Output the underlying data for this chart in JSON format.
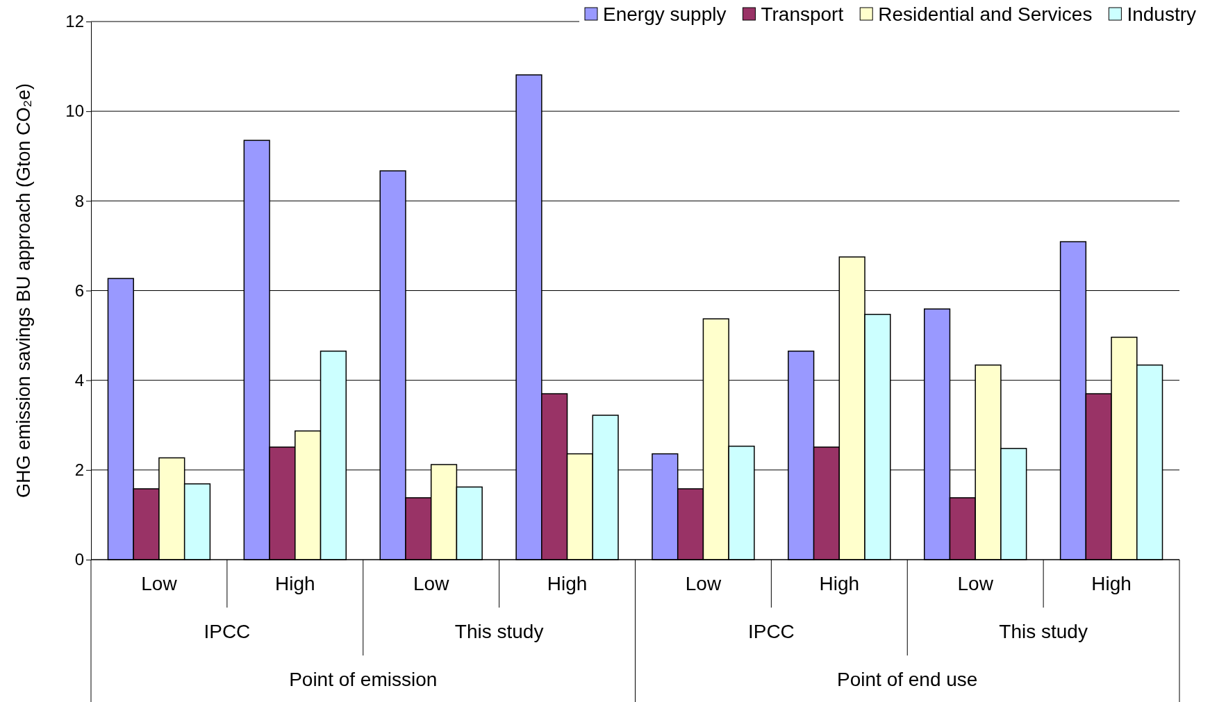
{
  "chart_data": {
    "type": "bar",
    "ylabel": "GHG emission savings BU approach (Gton CO₂e)",
    "categories": [
      "Low",
      "High",
      "Low",
      "High",
      "Low",
      "High",
      "Low",
      "High"
    ],
    "series": [
      {
        "name": "Energy supply",
        "color": "#9999ff",
        "values": [
          6.27,
          9.35,
          8.67,
          10.81,
          2.36,
          4.65,
          5.59,
          7.09
        ]
      },
      {
        "name": "Transport",
        "color": "#993366",
        "values": [
          1.58,
          2.51,
          1.38,
          3.7,
          1.58,
          2.51,
          1.38,
          3.7
        ]
      },
      {
        "name": "Residential and Services",
        "color": "#ffffcc",
        "values": [
          2.27,
          2.87,
          2.12,
          2.36,
          5.37,
          6.75,
          4.34,
          4.96
        ]
      },
      {
        "name": "Industry",
        "color": "#ccffff",
        "values": [
          1.69,
          4.65,
          1.62,
          3.22,
          2.53,
          5.47,
          2.48,
          4.34
        ]
      }
    ],
    "annotations": [
      "IPCC",
      "This study",
      "IPCC",
      "This study",
      "Point of emission",
      "Point of end use"
    ],
    "ylim": [
      0,
      12
    ],
    "yticks": [
      0,
      2,
      4,
      6,
      8,
      10,
      12
    ],
    "grid": "y",
    "legend": "top right"
  }
}
